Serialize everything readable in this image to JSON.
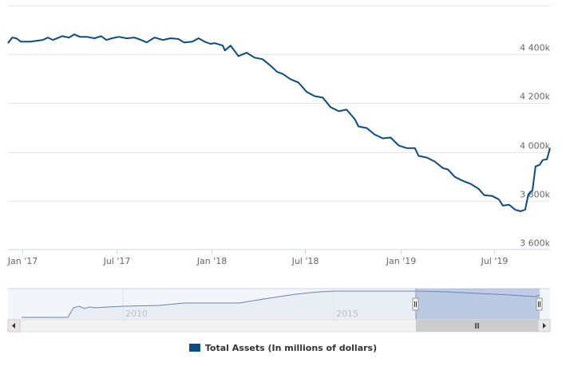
{
  "chart_data": {
    "type": "line",
    "title": "",
    "xlabel": "",
    "ylabel": "",
    "xlim": [
      "2016-12-04",
      "2019-10-17"
    ],
    "ylim": [
      3600,
      4600
    ],
    "grid": true,
    "legend_position": "bottom",
    "y_ticks": [
      {
        "value": 3600,
        "label": "3 600k"
      },
      {
        "value": 3800,
        "label": "3 800k"
      },
      {
        "value": 4000,
        "label": "4 000k"
      },
      {
        "value": 4200,
        "label": "4 200k"
      },
      {
        "value": 4400,
        "label": "4 400k"
      },
      {
        "value": 4600,
        "label": ""
      }
    ],
    "x_ticks": [
      {
        "date": "2017-01-01",
        "label": "Jan '17"
      },
      {
        "date": "2017-07-01",
        "label": "Jul '17"
      },
      {
        "date": "2018-01-01",
        "label": "Jan '18"
      },
      {
        "date": "2018-07-01",
        "label": "Jul '18"
      },
      {
        "date": "2019-01-01",
        "label": "Jan '19"
      },
      {
        "date": "2019-07-01",
        "label": "Jul '19"
      }
    ],
    "series": [
      {
        "name": "Total Assets (In millions of dollars)",
        "color": "#0b4a82",
        "x": [
          "2016-12-04",
          "2016-12-12",
          "2016-12-20",
          "2016-12-29",
          "2017-01-16",
          "2017-02-09",
          "2017-02-19",
          "2017-03-01",
          "2017-03-19",
          "2017-04-01",
          "2017-04-11",
          "2017-04-22",
          "2017-05-05",
          "2017-05-20",
          "2017-06-02",
          "2017-06-12",
          "2017-06-23",
          "2017-07-06",
          "2017-07-21",
          "2017-08-05",
          "2017-08-18",
          "2017-08-29",
          "2017-09-13",
          "2017-09-29",
          "2017-10-14",
          "2017-10-29",
          "2017-11-09",
          "2017-11-25",
          "2017-12-07",
          "2017-12-19",
          "2017-12-30",
          "2018-01-07",
          "2018-01-23",
          "2018-01-27",
          "2018-02-07",
          "2018-02-22",
          "2018-03-10",
          "2018-03-25",
          "2018-04-10",
          "2018-04-25",
          "2018-05-08",
          "2018-05-18",
          "2018-06-03",
          "2018-06-18",
          "2018-07-04",
          "2018-07-19",
          "2018-08-04",
          "2018-08-19",
          "2018-09-04",
          "2018-09-19",
          "2018-10-05",
          "2018-10-12",
          "2018-10-28",
          "2018-11-12",
          "2018-11-28",
          "2018-12-13",
          "2018-12-29",
          "2019-01-13",
          "2019-01-29",
          "2019-02-05",
          "2019-02-21",
          "2019-03-08",
          "2019-03-24",
          "2019-04-03",
          "2019-04-16",
          "2019-05-01",
          "2019-05-17",
          "2019-06-01",
          "2019-06-12",
          "2019-06-27",
          "2019-07-10",
          "2019-07-18",
          "2019-07-30",
          "2019-08-10",
          "2019-08-21",
          "2019-08-30",
          "2019-09-05",
          "2019-09-13",
          "2019-09-19",
          "2019-09-27",
          "2019-10-03",
          "2019-10-11",
          "2019-10-17"
        ],
        "values": [
          4446,
          4469,
          4466,
          4452,
          4452,
          4459,
          4469,
          4459,
          4475,
          4469,
          4482,
          4472,
          4472,
          4466,
          4475,
          4459,
          4466,
          4472,
          4466,
          4469,
          4459,
          4449,
          4469,
          4459,
          4466,
          4463,
          4449,
          4452,
          4466,
          4452,
          4443,
          4446,
          4436,
          4416,
          4436,
          4393,
          4407,
          4387,
          4380,
          4354,
          4328,
          4321,
          4298,
          4285,
          4246,
          4229,
          4223,
          4184,
          4167,
          4174,
          4134,
          4105,
          4098,
          4072,
          4056,
          4059,
          4026,
          4016,
          4016,
          3984,
          3977,
          3961,
          3934,
          3928,
          3898,
          3882,
          3869,
          3849,
          3823,
          3820,
          3806,
          3780,
          3784,
          3764,
          3757,
          3764,
          3826,
          3843,
          3941,
          3947,
          3967,
          3970,
          4016
        ]
      }
    ]
  },
  "navigator": {
    "labels": [
      "2010",
      "2015"
    ]
  },
  "legend": {
    "label": "Total Assets (In millions of dollars)",
    "color": "#0b4a82"
  }
}
